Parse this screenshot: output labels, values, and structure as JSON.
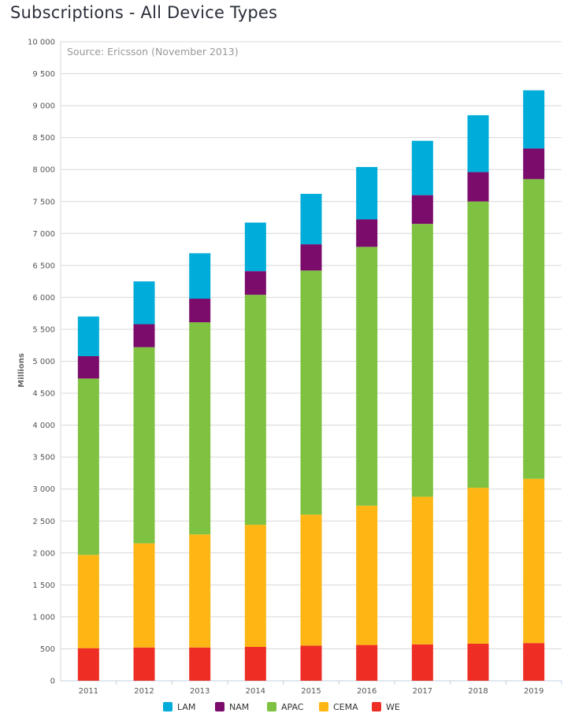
{
  "title": "Subscriptions - All Device Types",
  "chart_data": {
    "type": "bar",
    "stacked": true,
    "title": "Subscriptions - All Device Types",
    "subtitle": "Source: Ericsson (November 2013)",
    "xlabel": "",
    "ylabel": "Millions",
    "ylim": [
      0,
      10000
    ],
    "yticks": [
      0,
      500,
      1000,
      1500,
      2000,
      2500,
      3000,
      3500,
      4000,
      4500,
      5000,
      5500,
      6000,
      6500,
      7000,
      7500,
      8000,
      8500,
      9000,
      9500,
      10000
    ],
    "ytick_labels": [
      "0",
      "500",
      "1 000",
      "1 500",
      "2 000",
      "2 500",
      "3 000",
      "3 500",
      "4 000",
      "4 500",
      "5 000",
      "5 500",
      "6 000",
      "6 500",
      "7 000",
      "7 500",
      "8 000",
      "8 500",
      "9 000",
      "9 500",
      "10 000"
    ],
    "grid": true,
    "legend_position": "bottom",
    "categories": [
      "2011",
      "2012",
      "2013",
      "2014",
      "2015",
      "2016",
      "2017",
      "2018",
      "2019"
    ],
    "series": [
      {
        "name": "WE",
        "color": "#ee2d24",
        "values": [
          510,
          520,
          520,
          530,
          550,
          560,
          570,
          580,
          590
        ]
      },
      {
        "name": "CEMA",
        "color": "#fdb614",
        "values": [
          1460,
          1630,
          1770,
          1910,
          2050,
          2180,
          2310,
          2440,
          2570
        ]
      },
      {
        "name": "APAC",
        "color": "#7fc241",
        "values": [
          2760,
          3070,
          3320,
          3600,
          3820,
          4050,
          4270,
          4480,
          4690
        ]
      },
      {
        "name": "NAM",
        "color": "#7b0c6b",
        "values": [
          350,
          360,
          370,
          370,
          410,
          430,
          450,
          460,
          480
        ]
      },
      {
        "name": "LAM",
        "color": "#00acd9",
        "values": [
          620,
          670,
          710,
          760,
          790,
          820,
          850,
          890,
          910
        ]
      }
    ],
    "legend_order": [
      "LAM",
      "NAM",
      "APAC",
      "CEMA",
      "WE"
    ]
  }
}
